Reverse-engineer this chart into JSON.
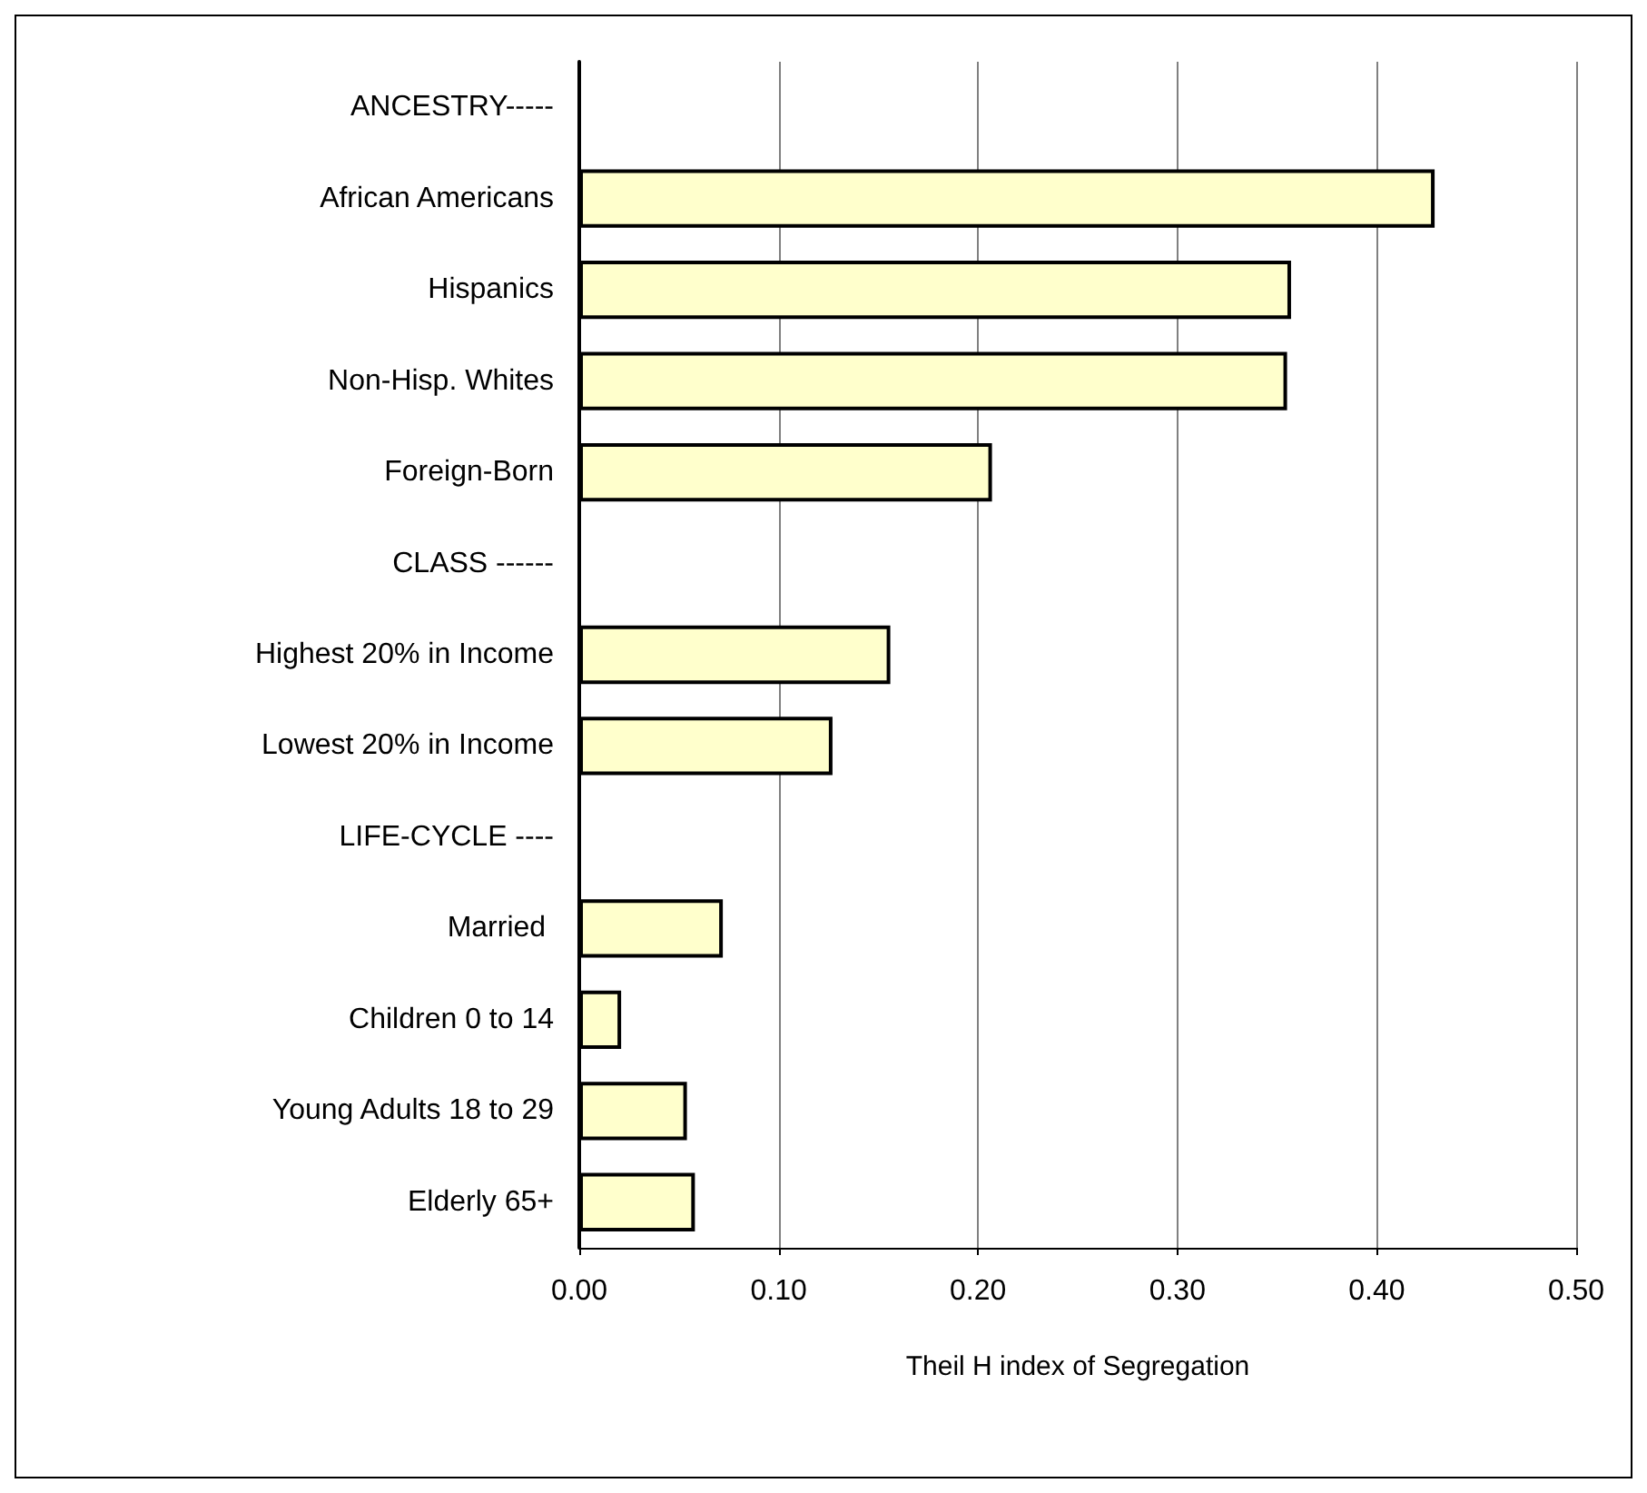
{
  "chart_data": {
    "type": "bar",
    "orientation": "horizontal",
    "xlabel": "Theil H index of Segregation",
    "categories": [
      "ANCESTRY-----",
      "African Americans",
      "Hispanics",
      "Non-Hisp. Whites",
      "Foreign-Born",
      "CLASS ------",
      "Highest 20% in Income",
      "Lowest 20% in Income",
      "LIFE-CYCLE ----",
      "Married ",
      "Children 0 to 14",
      "Young Adults 18 to 29",
      "Elderly 65+"
    ],
    "values": [
      null,
      0.429,
      0.357,
      0.355,
      0.207,
      null,
      0.156,
      0.127,
      null,
      0.072,
      0.021,
      0.054,
      0.058
    ],
    "color": "#ffffcc",
    "xlim": [
      0,
      0.5
    ],
    "xticks": [
      {
        "value": 0,
        "label": "0.00"
      },
      {
        "value": 0.1,
        "label": "0.10"
      },
      {
        "value": 0.2,
        "label": "0.20"
      },
      {
        "value": 0.3,
        "label": "0.30"
      },
      {
        "value": 0.4,
        "label": "0.40"
      },
      {
        "value": 0.5,
        "label": "0.50"
      }
    ],
    "grid": "x"
  }
}
